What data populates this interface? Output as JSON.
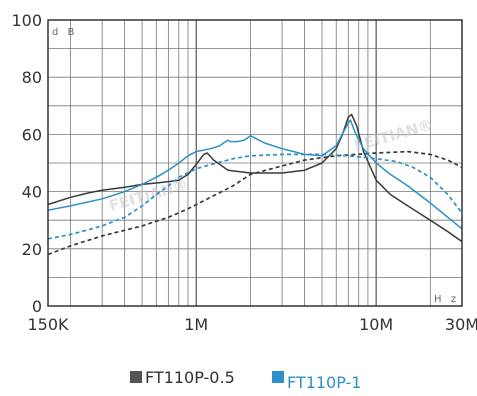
{
  "chart_data": {
    "type": "line",
    "title": "",
    "xlabel": "",
    "ylabel": "",
    "x_scale": "log",
    "xlim": [
      150000,
      30000000
    ],
    "ylim": [
      0,
      100
    ],
    "grid": true,
    "legend_position": "bottom",
    "y_ticks": [
      0,
      20,
      40,
      60,
      80,
      100
    ],
    "x_tick_labels": [
      {
        "value": 150000,
        "label": "150K"
      },
      {
        "value": 1000000,
        "label": "1M"
      },
      {
        "value": 10000000,
        "label": "10M"
      },
      {
        "value": 30000000,
        "label": "30M"
      }
    ],
    "y_unit": "d B",
    "x_unit": "H z",
    "watermark": "FEITIAN®",
    "series": [
      {
        "name": "FT110P-0.5",
        "color": "#3a3a3a",
        "line": "solid",
        "points": [
          [
            150000,
            35.5
          ],
          [
            200000,
            38
          ],
          [
            250000,
            39.5
          ],
          [
            300000,
            40.5
          ],
          [
            400000,
            41.5
          ],
          [
            500000,
            42.5
          ],
          [
            600000,
            43
          ],
          [
            700000,
            43.5
          ],
          [
            800000,
            44
          ],
          [
            900000,
            46
          ],
          [
            1000000,
            49.5
          ],
          [
            1100000,
            53
          ],
          [
            1150000,
            53.5
          ],
          [
            1250000,
            51
          ],
          [
            1500000,
            47.5
          ],
          [
            2000000,
            46.5
          ],
          [
            3000000,
            46.5
          ],
          [
            4000000,
            47.5
          ],
          [
            5000000,
            50
          ],
          [
            6000000,
            55
          ],
          [
            6500000,
            60
          ],
          [
            7000000,
            66
          ],
          [
            7300000,
            67
          ],
          [
            7800000,
            63
          ],
          [
            8500000,
            54
          ],
          [
            10000000,
            44
          ],
          [
            12000000,
            39
          ],
          [
            15000000,
            35
          ],
          [
            20000000,
            30
          ],
          [
            25000000,
            26
          ],
          [
            30000000,
            22.5
          ]
        ]
      },
      {
        "name": "",
        "color": "#3a3a3a",
        "line": "dashed",
        "points": [
          [
            150000,
            18
          ],
          [
            200000,
            21
          ],
          [
            300000,
            24.5
          ],
          [
            500000,
            28
          ],
          [
            700000,
            31
          ],
          [
            900000,
            34
          ],
          [
            1200000,
            38
          ],
          [
            1600000,
            42
          ],
          [
            2000000,
            46
          ],
          [
            3000000,
            49
          ],
          [
            4000000,
            51
          ],
          [
            6000000,
            52.5
          ],
          [
            10000000,
            53.5
          ],
          [
            15000000,
            54
          ],
          [
            20000000,
            53
          ],
          [
            25000000,
            51
          ],
          [
            30000000,
            48.5
          ]
        ]
      },
      {
        "name": "FT110P-1",
        "color": "#2e90c8",
        "line": "solid",
        "points": [
          [
            150000,
            33.5
          ],
          [
            200000,
            35
          ],
          [
            300000,
            37.5
          ],
          [
            400000,
            40
          ],
          [
            500000,
            42.5
          ],
          [
            600000,
            45
          ],
          [
            700000,
            47.5
          ],
          [
            800000,
            50
          ],
          [
            900000,
            52.5
          ],
          [
            1000000,
            54
          ],
          [
            1200000,
            55
          ],
          [
            1350000,
            56
          ],
          [
            1500000,
            58
          ],
          [
            1550000,
            57.5
          ],
          [
            1700000,
            57.5
          ],
          [
            1850000,
            58
          ],
          [
            2000000,
            59.5
          ],
          [
            2400000,
            57
          ],
          [
            3000000,
            55
          ],
          [
            4000000,
            53
          ],
          [
            5000000,
            52.5
          ],
          [
            6000000,
            56
          ],
          [
            6600000,
            61
          ],
          [
            7000000,
            64
          ],
          [
            7200000,
            65
          ],
          [
            7600000,
            61
          ],
          [
            8500000,
            55
          ],
          [
            10000000,
            50
          ],
          [
            12000000,
            46
          ],
          [
            15000000,
            42
          ],
          [
            20000000,
            36
          ],
          [
            25000000,
            31
          ],
          [
            30000000,
            27
          ]
        ]
      },
      {
        "name": "",
        "color": "#2e90c8",
        "line": "dashed",
        "points": [
          [
            150000,
            23.5
          ],
          [
            200000,
            25
          ],
          [
            300000,
            28
          ],
          [
            400000,
            31
          ],
          [
            500000,
            35
          ],
          [
            600000,
            39
          ],
          [
            700000,
            42
          ],
          [
            800000,
            45
          ],
          [
            1000000,
            48
          ],
          [
            1300000,
            50
          ],
          [
            1600000,
            51.5
          ],
          [
            2000000,
            52.5
          ],
          [
            3000000,
            53
          ],
          [
            5000000,
            53
          ],
          [
            7000000,
            52.5
          ],
          [
            10000000,
            51.5
          ],
          [
            13000000,
            50.5
          ],
          [
            16000000,
            48.5
          ],
          [
            20000000,
            45
          ],
          [
            25000000,
            39
          ],
          [
            30000000,
            32.5
          ]
        ]
      }
    ],
    "legend": [
      {
        "label": "FT110P-0.5",
        "color": "#555555",
        "text_color": "#333333"
      },
      {
        "label": "FT110P-1",
        "color": "#2e90c8",
        "text_color": "#2e90c8"
      }
    ]
  }
}
